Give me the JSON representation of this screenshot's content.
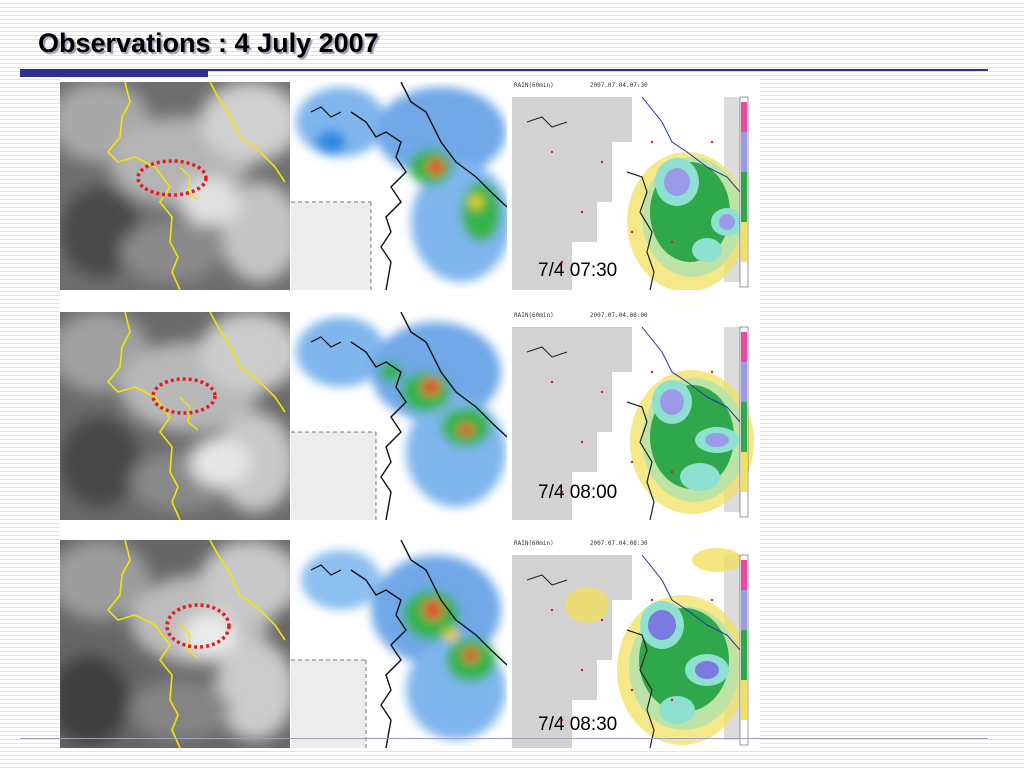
{
  "slide": {
    "title": "Observations : 4 July 2007"
  },
  "colors": {
    "title_rule": "#2e2f91",
    "highlight_ellipse": "#e41a1c",
    "coastline_ir": "#f2e600"
  },
  "rows": [
    {
      "time_label": "7/4 07:30",
      "rain_header_left": "RAIN(60min)",
      "rain_header_right": "2007.07.04.07:30"
    },
    {
      "time_label": "7/4 08:00",
      "rain_header_left": "RAIN(60min)",
      "rain_header_right": "2007.07.04.08:00"
    },
    {
      "time_label": "7/4 08:30",
      "rain_header_left": "RAIN(60min)",
      "rain_header_right": "2007.07.04.08:30"
    }
  ]
}
